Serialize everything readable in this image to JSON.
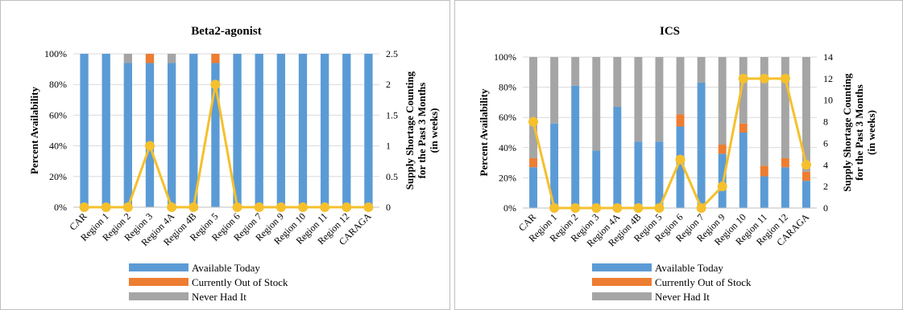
{
  "legend_labels": [
    "Available Today",
    "Currently Out of Stock",
    "Never Had It"
  ],
  "colors": {
    "available": "#5b9bd5",
    "out_of_stock": "#ed7d31",
    "never": "#a5a5a5",
    "line": "#f5c02c",
    "grid": "#d9d9d9",
    "axis": "#bfbfbf"
  },
  "chart_data": [
    {
      "type": "bar",
      "stacked": true,
      "title": "Beta2-agonist",
      "ylabel": "Percent Availability",
      "y2label": [
        "Supply Shortage Counting",
        "for the Past 3 Months",
        "(in weeks)"
      ],
      "categories": [
        "CAR",
        "Region 1",
        "Region 2",
        "Region 3",
        "Region 4A",
        "Region 4B",
        "Region 5",
        "Region 6",
        "Region 7",
        "Region 9",
        "Region 10",
        "Region 11",
        "Region 12",
        "CARAGA"
      ],
      "ylim": [
        0,
        100
      ],
      "y_ticks": [
        "0%",
        "20%",
        "40%",
        "60%",
        "80%",
        "100%"
      ],
      "y2lim": [
        0,
        2.5
      ],
      "y2_ticks": [
        "0",
        "0.5",
        "1",
        "1.5",
        "2",
        "2.5"
      ],
      "series": [
        {
          "name": "Available Today",
          "values": [
            100,
            100,
            94,
            94,
            94,
            100,
            94,
            100,
            100,
            100,
            100,
            100,
            100,
            100
          ]
        },
        {
          "name": "Currently Out of Stock",
          "values": [
            0,
            0,
            0,
            6,
            0,
            0,
            6,
            0,
            0,
            0,
            0,
            0,
            0,
            0
          ]
        },
        {
          "name": "Never Had It",
          "values": [
            0,
            0,
            6,
            0,
            6,
            0,
            0,
            0,
            0,
            0,
            0,
            0,
            0,
            0
          ]
        }
      ],
      "line": [
        0,
        0,
        0,
        1,
        0,
        0,
        2,
        0,
        0,
        0,
        0,
        0,
        0,
        0
      ],
      "legend_position": "bottom"
    },
    {
      "type": "bar",
      "stacked": true,
      "title": "ICS",
      "ylabel": "Percent Availability",
      "y2label": [
        "Supply Shortage Counting",
        "for the Past 3 Months",
        "(in weeks)"
      ],
      "categories": [
        "CAR",
        "Region 1",
        "Region 2",
        "Region 3",
        "Region 4A",
        "Region 4B",
        "Region 5",
        "Region 6",
        "Region 7",
        "Region 9",
        "Region 10",
        "Region 11",
        "Region 12",
        "CARAGA"
      ],
      "ylim": [
        0,
        100
      ],
      "y_ticks": [
        "0%",
        "20%",
        "40%",
        "60%",
        "80%",
        "100%"
      ],
      "y2lim": [
        0,
        14
      ],
      "y2_ticks": [
        "0",
        "2",
        "4",
        "6",
        "8",
        "10",
        "12",
        "14"
      ],
      "series": [
        {
          "name": "Available Today",
          "values": [
            27,
            56,
            81,
            38,
            67,
            44,
            44,
            54,
            83,
            36,
            50,
            21,
            27,
            18
          ]
        },
        {
          "name": "Currently Out of Stock",
          "values": [
            6,
            0,
            0,
            0,
            0,
            0,
            0,
            8,
            0,
            6,
            6,
            7,
            6,
            6
          ]
        },
        {
          "name": "Never Had It",
          "values": [
            67,
            44,
            19,
            62,
            33,
            56,
            56,
            38,
            17,
            58,
            44,
            72,
            67,
            76
          ]
        }
      ],
      "line": [
        8,
        0,
        0,
        0,
        0,
        0,
        0,
        4.5,
        0,
        2,
        12,
        12,
        12,
        4
      ],
      "legend_position": "bottom"
    }
  ]
}
